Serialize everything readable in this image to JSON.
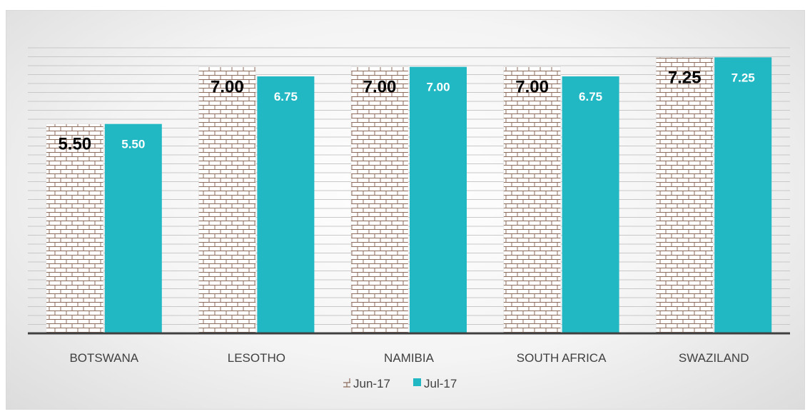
{
  "chart_data": {
    "type": "bar",
    "categories": [
      "BOTSWANA",
      "LESOTHO",
      "NAMIBIA",
      "SOUTH AFRICA",
      "SWAZILAND"
    ],
    "series": [
      {
        "name": "Jun-17",
        "values": [
          5.5,
          7.0,
          7.0,
          7.0,
          7.25
        ],
        "labels": [
          "5.50",
          "7.00",
          "7.00",
          "7.00",
          "7.25"
        ],
        "color": "#8c6b5b",
        "pattern": "brick"
      },
      {
        "name": "Jul-17",
        "values": [
          5.5,
          6.75,
          7.0,
          6.75,
          7.25
        ],
        "labels": [
          "5.50",
          "6.75",
          "7.00",
          "6.75",
          "7.25"
        ],
        "color": "#22b8c3"
      }
    ],
    "ylim": [
      0,
      7.5
    ],
    "grid": true,
    "legend": "bottom",
    "title": "",
    "xlabel": "",
    "ylabel": ""
  }
}
